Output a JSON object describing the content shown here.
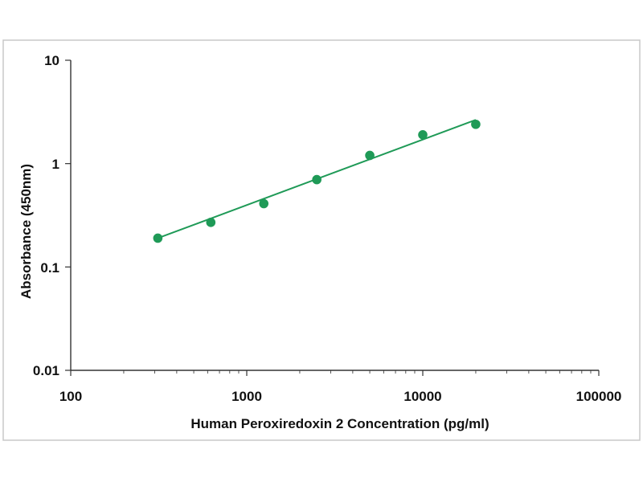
{
  "chart_data": {
    "type": "scatter",
    "title": "",
    "xlabel": "Human Peroxiredoxin 2 Concentration (pg/ml)",
    "ylabel": "Absorbance (450nm)",
    "x_scale": "log",
    "y_scale": "log",
    "xlim": [
      100,
      100000
    ],
    "ylim": [
      0.01,
      10
    ],
    "x_tick_labels": [
      "100",
      "1000",
      "10000",
      "100000"
    ],
    "y_tick_labels": [
      "10",
      "1",
      "0.1",
      "0.01"
    ],
    "grid": false,
    "legend": "none",
    "marker_color": "#1f9a57",
    "series": [
      {
        "x": [
          312.5,
          625,
          1250,
          2500,
          5000,
          10000,
          20000
        ],
        "y": [
          0.19,
          0.27,
          0.41,
          0.7,
          1.2,
          1.9,
          2.4
        ]
      }
    ],
    "fit_line": {
      "x": [
        312.5,
        20000
      ],
      "y": [
        0.19,
        2.65
      ]
    }
  }
}
